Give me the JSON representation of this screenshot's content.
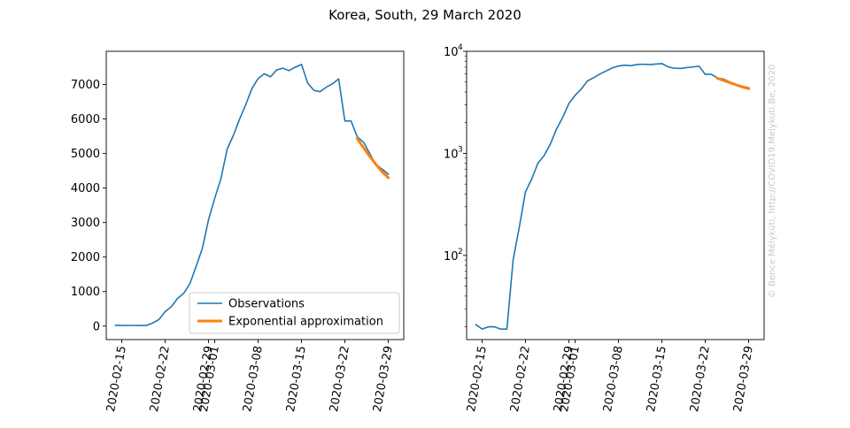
{
  "figure": {
    "title": "Korea, South, 29 March 2020",
    "watermark": "© Bence Mélykúti, http://COVID19.Melykuti.Be, 2020"
  },
  "chart_data": [
    {
      "type": "line",
      "scale": "linear",
      "ylim": [
        -390,
        7960
      ],
      "yticks": [
        0,
        1000,
        2000,
        3000,
        4000,
        5000,
        6000,
        7000
      ],
      "ytick_labels": [
        "0",
        "1000",
        "2000",
        "3000",
        "4000",
        "5000",
        "6000",
        "7000"
      ],
      "xticks": [
        "2020-02-15",
        "2020-02-22",
        "2020-02-29",
        "2020-03-01",
        "2020-03-08",
        "2020-03-15",
        "2020-03-22",
        "2020-03-29"
      ],
      "grid": false,
      "legend": {
        "placement": "lower-right",
        "entries": [
          {
            "label": "Observations",
            "color": "#1f77b4"
          },
          {
            "label": "Exponential approximation",
            "color": "#ff7f0e"
          }
        ]
      },
      "series": [
        {
          "name": "Observations",
          "color": "#1f77b4",
          "x": [
            "2020-02-14",
            "2020-02-15",
            "2020-02-16",
            "2020-02-17",
            "2020-02-18",
            "2020-02-19",
            "2020-02-20",
            "2020-02-21",
            "2020-02-22",
            "2020-02-23",
            "2020-02-24",
            "2020-02-25",
            "2020-02-26",
            "2020-02-27",
            "2020-02-28",
            "2020-02-29",
            "2020-03-01",
            "2020-03-02",
            "2020-03-03",
            "2020-03-04",
            "2020-03-05",
            "2020-03-06",
            "2020-03-07",
            "2020-03-08",
            "2020-03-09",
            "2020-03-10",
            "2020-03-11",
            "2020-03-12",
            "2020-03-13",
            "2020-03-14",
            "2020-03-15",
            "2020-03-16",
            "2020-03-17",
            "2020-03-18",
            "2020-03-19",
            "2020-03-20",
            "2020-03-21",
            "2020-03-22",
            "2020-03-23",
            "2020-03-24",
            "2020-03-25",
            "2020-03-26",
            "2020-03-27",
            "2020-03-28",
            "2020-03-29"
          ],
          "values": [
            21,
            19,
            20,
            20,
            19,
            19,
            90,
            190,
            420,
            560,
            800,
            950,
            1230,
            1730,
            2250,
            3080,
            3700,
            4270,
            5120,
            5520,
            5990,
            6410,
            6880,
            7170,
            7310,
            7220,
            7420,
            7470,
            7400,
            7500,
            7580,
            7040,
            6830,
            6790,
            6920,
            7020,
            7160,
            5940,
            5940,
            5480,
            5330,
            5000,
            4680,
            4550,
            4400
          ]
        },
        {
          "name": "Exponential approximation",
          "color": "#ff7f0e",
          "x": [
            "2020-03-24",
            "2020-03-25",
            "2020-03-26",
            "2020-03-27",
            "2020-03-28",
            "2020-03-29"
          ],
          "values": [
            5430,
            5170,
            4920,
            4690,
            4470,
            4300
          ]
        }
      ]
    },
    {
      "type": "line",
      "scale": "log",
      "ylim": [
        15,
        10000
      ],
      "yticks": [
        100,
        1000,
        10000
      ],
      "ytick_labels": [
        "10",
        "10",
        "10"
      ],
      "ytick_exponents": [
        "2",
        "3",
        "4"
      ],
      "xticks": [
        "2020-02-15",
        "2020-02-22",
        "2020-02-29",
        "2020-03-01",
        "2020-03-08",
        "2020-03-15",
        "2020-03-22",
        "2020-03-29"
      ],
      "grid": false,
      "series": [
        {
          "name": "Observations",
          "color": "#1f77b4",
          "x": [
            "2020-02-14",
            "2020-02-15",
            "2020-02-16",
            "2020-02-17",
            "2020-02-18",
            "2020-02-19",
            "2020-02-20",
            "2020-02-21",
            "2020-02-22",
            "2020-02-23",
            "2020-02-24",
            "2020-02-25",
            "2020-02-26",
            "2020-02-27",
            "2020-02-28",
            "2020-02-29",
            "2020-03-01",
            "2020-03-02",
            "2020-03-03",
            "2020-03-04",
            "2020-03-05",
            "2020-03-06",
            "2020-03-07",
            "2020-03-08",
            "2020-03-09",
            "2020-03-10",
            "2020-03-11",
            "2020-03-12",
            "2020-03-13",
            "2020-03-14",
            "2020-03-15",
            "2020-03-16",
            "2020-03-17",
            "2020-03-18",
            "2020-03-19",
            "2020-03-20",
            "2020-03-21",
            "2020-03-22",
            "2020-03-23",
            "2020-03-24",
            "2020-03-25",
            "2020-03-26",
            "2020-03-27",
            "2020-03-28",
            "2020-03-29"
          ],
          "values": [
            21,
            19,
            20,
            20,
            19,
            19,
            90,
            190,
            420,
            560,
            800,
            950,
            1230,
            1730,
            2250,
            3080,
            3700,
            4270,
            5120,
            5520,
            5990,
            6410,
            6880,
            7170,
            7310,
            7220,
            7420,
            7470,
            7400,
            7500,
            7580,
            7040,
            6830,
            6790,
            6920,
            7020,
            7160,
            5940,
            5940,
            5480,
            5330,
            5000,
            4680,
            4550,
            4400
          ]
        },
        {
          "name": "Exponential approximation",
          "color": "#ff7f0e",
          "x": [
            "2020-03-24",
            "2020-03-25",
            "2020-03-26",
            "2020-03-27",
            "2020-03-28",
            "2020-03-29"
          ],
          "values": [
            5430,
            5170,
            4920,
            4690,
            4470,
            4300
          ]
        }
      ]
    }
  ]
}
